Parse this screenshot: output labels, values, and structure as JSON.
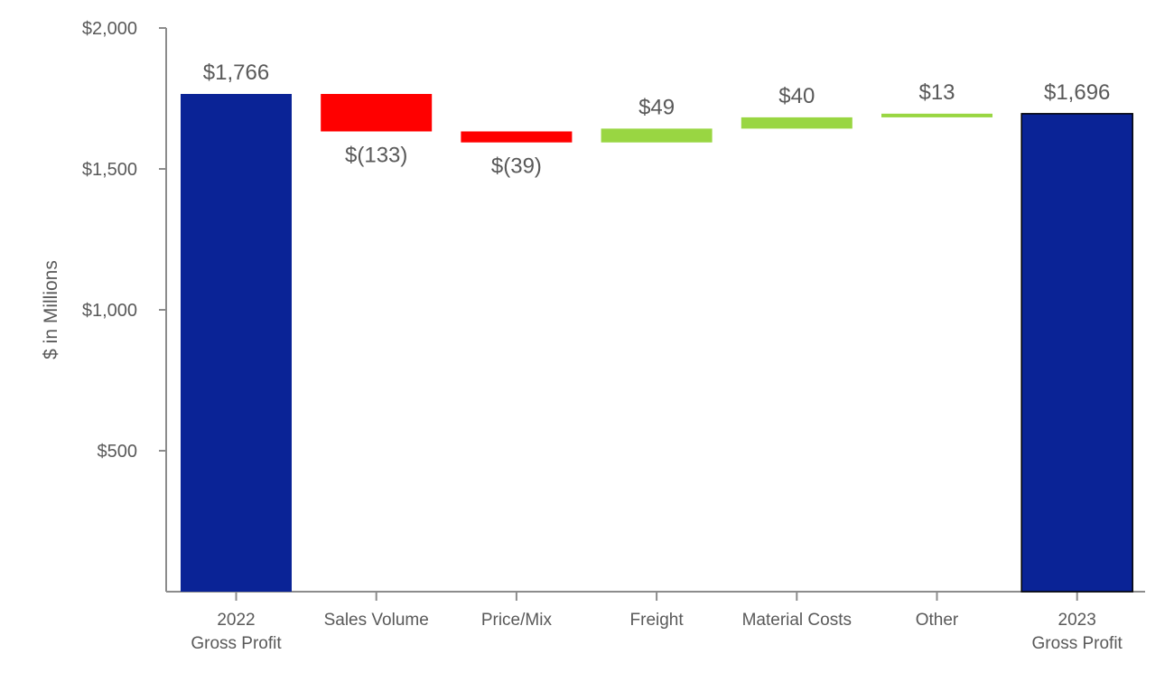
{
  "chart_data": {
    "type": "waterfall",
    "title": "",
    "xlabel": "",
    "ylabel": "$ in Millions",
    "ylim": [
      0,
      2000
    ],
    "yticks": [
      500,
      1000,
      1500,
      2000
    ],
    "ytick_labels": [
      "$500",
      "$1,000",
      "$1,500",
      "$2,000"
    ],
    "grid": false,
    "legend": "none",
    "categories": [
      [
        "2022",
        "Gross Profit"
      ],
      [
        "Sales Volume"
      ],
      [
        "Price/Mix"
      ],
      [
        "Freight"
      ],
      [
        "Material Costs"
      ],
      [
        "Other"
      ],
      [
        "2023",
        "Gross Profit"
      ]
    ],
    "kinds": [
      "total",
      "delta",
      "delta",
      "delta",
      "delta",
      "delta",
      "total"
    ],
    "values": [
      1766,
      -133,
      -39,
      49,
      40,
      13,
      1696
    ],
    "data_labels": [
      "$1,766",
      "$(133)",
      "$(39)",
      "$49",
      "$40",
      "$13",
      "$1,696"
    ],
    "colors": {
      "total": "#0A2396",
      "decrease": "#FF0000",
      "increase": "#99D642",
      "axis": "#8C8C8C",
      "text": "#595959"
    }
  }
}
